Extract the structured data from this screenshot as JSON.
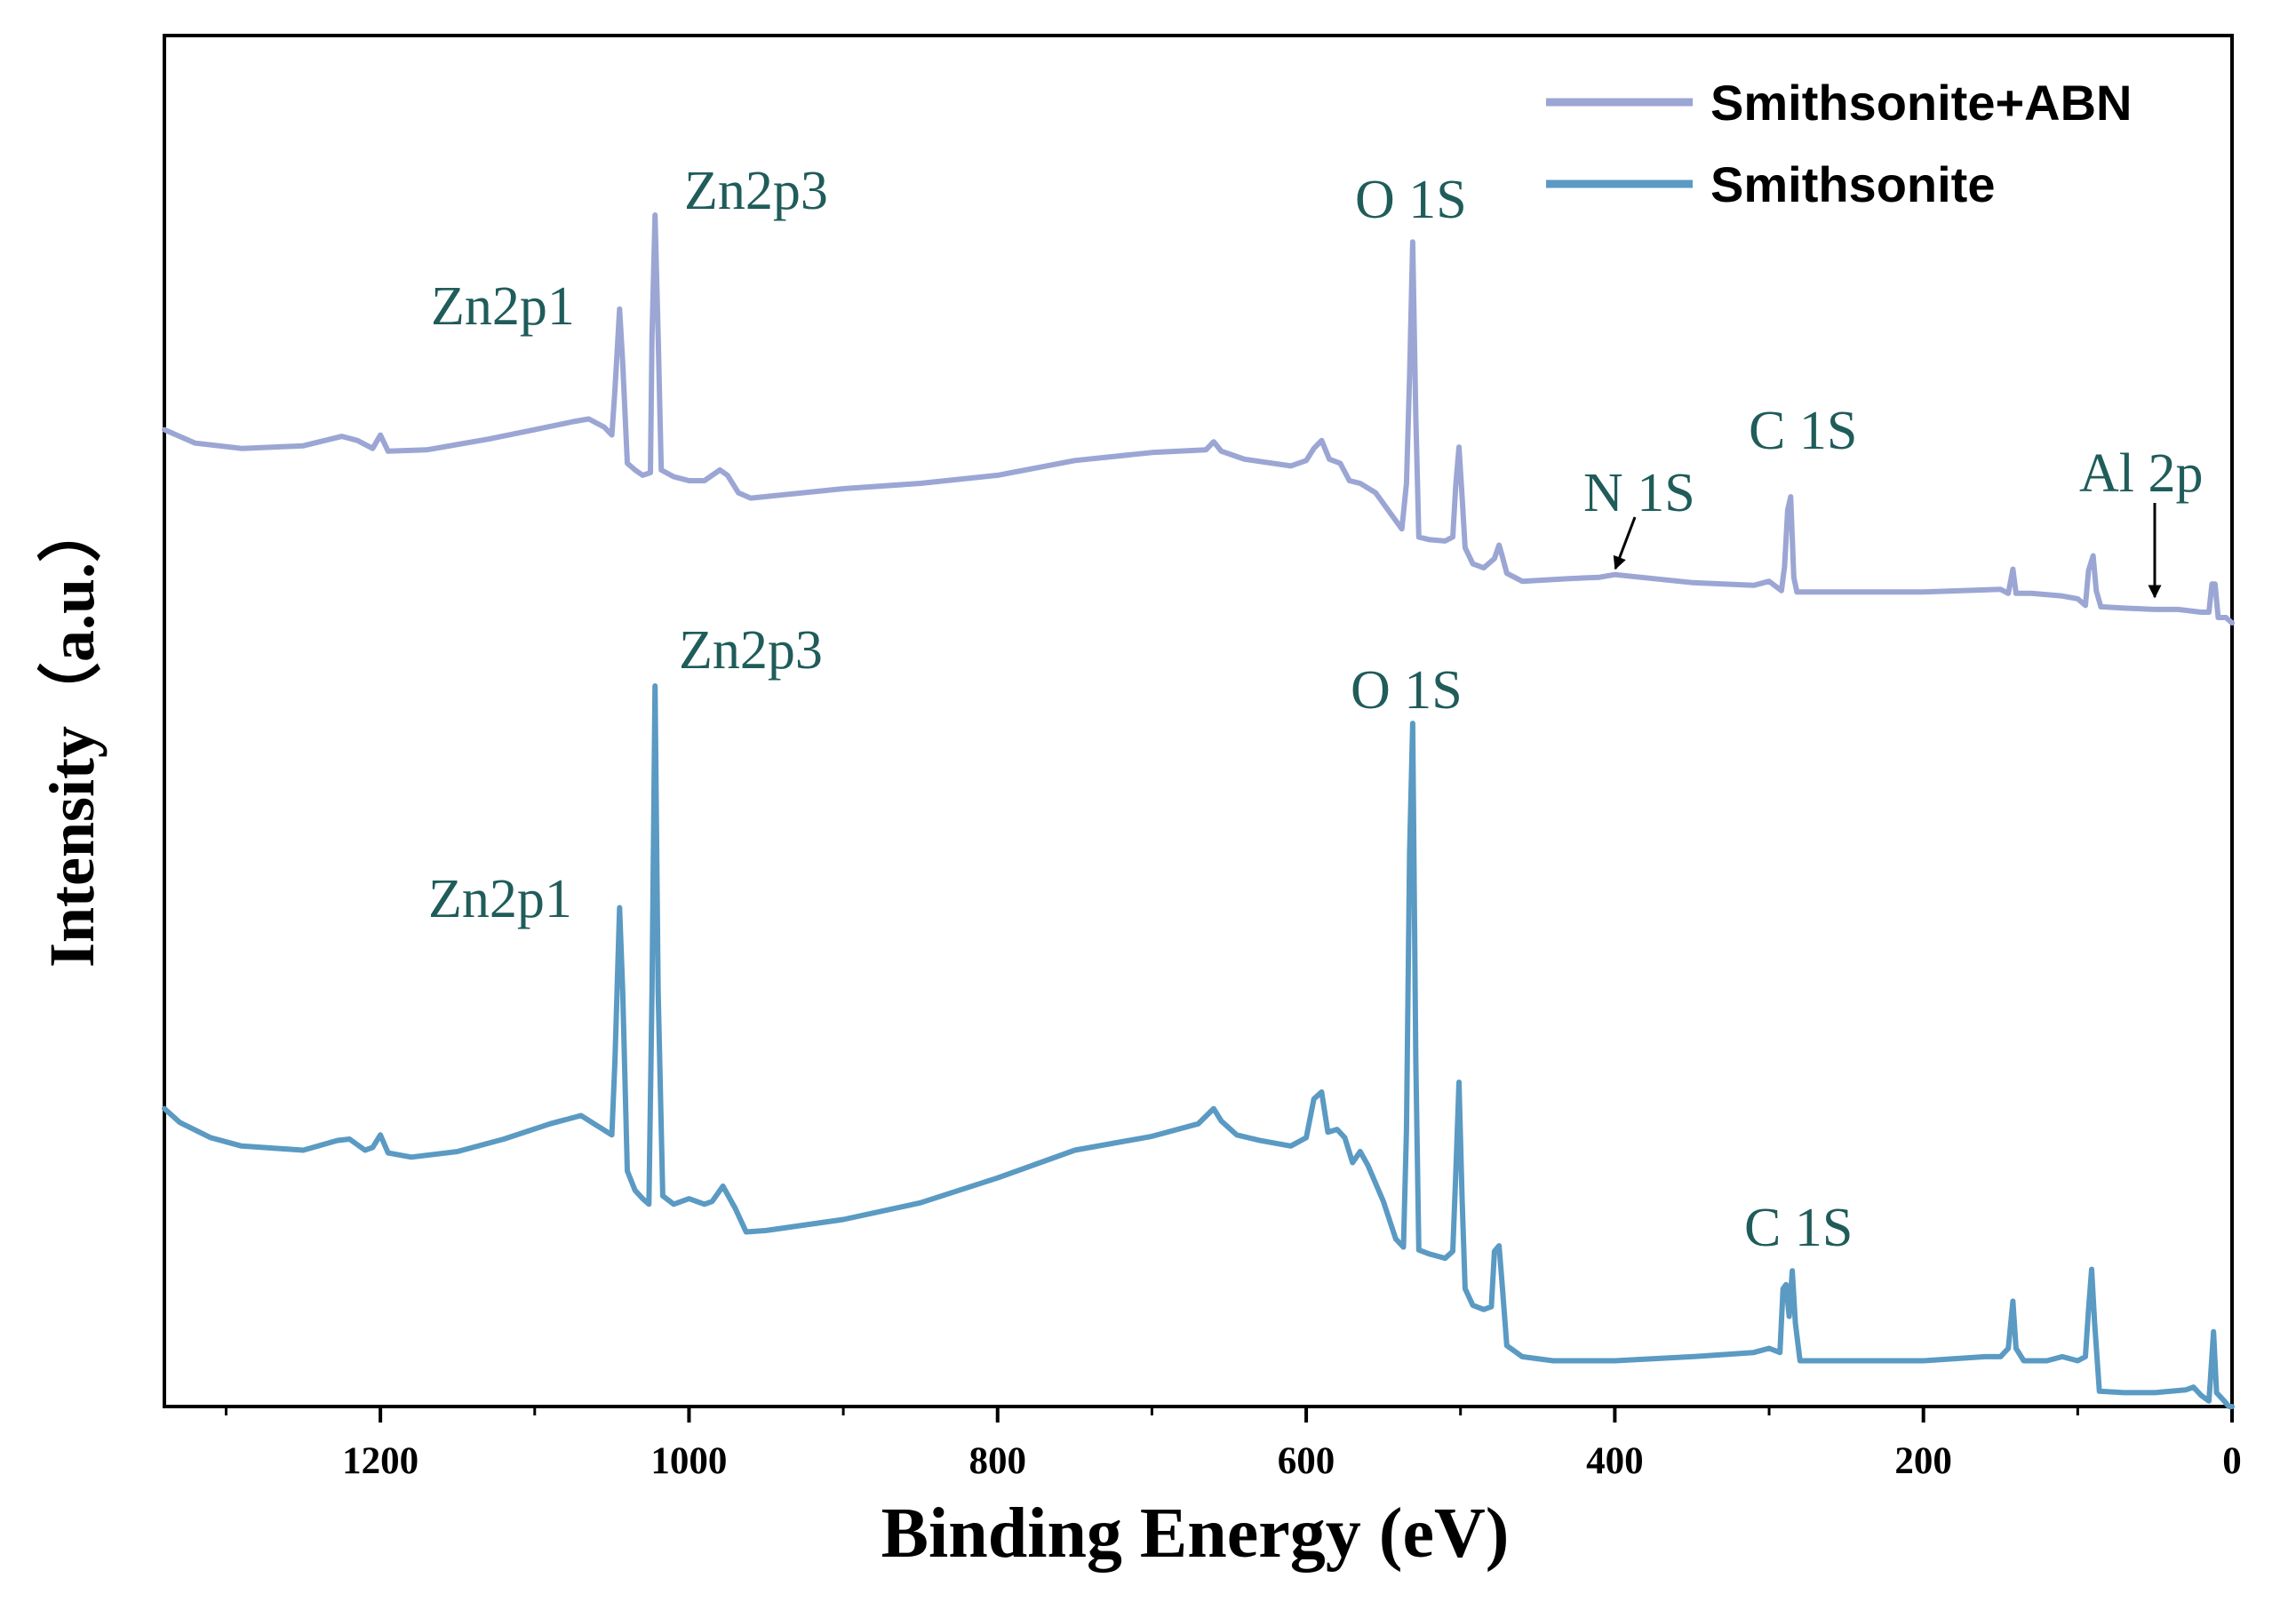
{
  "chart_data": {
    "type": "line",
    "title": "",
    "xlabel": "Binding Energy (eV)",
    "ylabel": "Intensity（a.u.）",
    "xlim": [
      1340,
      0
    ],
    "x_reversed": true,
    "ylim": [
      0,
      100
    ],
    "grid": false,
    "legend_position": "top-right",
    "x_ticks": [
      1200,
      1000,
      800,
      600,
      400,
      200,
      0
    ],
    "x_minor_ticks": [
      1300,
      1100,
      900,
      700,
      500,
      300,
      100
    ],
    "series": [
      {
        "name": "Smithsonite+ABN",
        "color": "#9ba6d4",
        "points": [
          [
            1340,
            71.0
          ],
          [
            1320,
            70.0
          ],
          [
            1290,
            69.6
          ],
          [
            1250,
            69.8
          ],
          [
            1225,
            70.5
          ],
          [
            1215,
            70.2
          ],
          [
            1205,
            69.6
          ],
          [
            1200,
            70.6
          ],
          [
            1195,
            69.4
          ],
          [
            1170,
            69.5
          ],
          [
            1130,
            70.3
          ],
          [
            1100,
            71.0
          ],
          [
            1075,
            71.6
          ],
          [
            1065,
            71.8
          ],
          [
            1055,
            71.2
          ],
          [
            1050,
            70.6
          ],
          [
            1048,
            74.0
          ],
          [
            1045,
            80.0
          ],
          [
            1043,
            76.0
          ],
          [
            1040,
            68.5
          ],
          [
            1035,
            68.0
          ],
          [
            1030,
            67.6
          ],
          [
            1025,
            67.8
          ],
          [
            1024,
            78.0
          ],
          [
            1022,
            87.0
          ],
          [
            1020,
            78.0
          ],
          [
            1018,
            68.0
          ],
          [
            1010,
            67.5
          ],
          [
            1000,
            67.2
          ],
          [
            990,
            67.2
          ],
          [
            980,
            68.0
          ],
          [
            975,
            67.6
          ],
          [
            968,
            66.3
          ],
          [
            960,
            65.9
          ],
          [
            900,
            66.6
          ],
          [
            850,
            67.0
          ],
          [
            800,
            67.6
          ],
          [
            750,
            68.7
          ],
          [
            700,
            69.3
          ],
          [
            665,
            69.5
          ],
          [
            660,
            70.1
          ],
          [
            655,
            69.4
          ],
          [
            640,
            68.8
          ],
          [
            610,
            68.3
          ],
          [
            600,
            68.7
          ],
          [
            595,
            69.6
          ],
          [
            590,
            70.2
          ],
          [
            585,
            68.8
          ],
          [
            578,
            68.5
          ],
          [
            572,
            67.2
          ],
          [
            565,
            67.0
          ],
          [
            555,
            66.3
          ],
          [
            545,
            64.7
          ],
          [
            538,
            63.6
          ],
          [
            535,
            67.0
          ],
          [
            533,
            75.0
          ],
          [
            531,
            85.0
          ],
          [
            529,
            72.0
          ],
          [
            527,
            63.0
          ],
          [
            520,
            62.8
          ],
          [
            510,
            62.7
          ],
          [
            505,
            63.0
          ],
          [
            503,
            67.0
          ],
          [
            501,
            69.7
          ],
          [
            499,
            66.0
          ],
          [
            497,
            62.2
          ],
          [
            492,
            61.0
          ],
          [
            485,
            60.7
          ],
          [
            478,
            61.4
          ],
          [
            475,
            62.4
          ],
          [
            473,
            61.6
          ],
          [
            470,
            60.3
          ],
          [
            460,
            59.7
          ],
          [
            430,
            59.9
          ],
          [
            410,
            60.0
          ],
          [
            400,
            60.2
          ],
          [
            350,
            59.6
          ],
          [
            310,
            59.4
          ],
          [
            300,
            59.7
          ],
          [
            292,
            59.0
          ],
          [
            290,
            60.8
          ],
          [
            288,
            65.0
          ],
          [
            286,
            66.0
          ],
          [
            284,
            60.0
          ],
          [
            282,
            58.9
          ],
          [
            270,
            58.9
          ],
          [
            200,
            58.9
          ],
          [
            150,
            59.1
          ],
          [
            145,
            58.8
          ],
          [
            142,
            60.6
          ],
          [
            140,
            58.8
          ],
          [
            130,
            58.8
          ],
          [
            110,
            58.6
          ],
          [
            100,
            58.4
          ],
          [
            95,
            57.9
          ],
          [
            93,
            60.5
          ],
          [
            90,
            61.6
          ],
          [
            88,
            59.0
          ],
          [
            85,
            57.8
          ],
          [
            70,
            57.7
          ],
          [
            50,
            57.6
          ],
          [
            35,
            57.6
          ],
          [
            20,
            57.4
          ],
          [
            15,
            57.4
          ],
          [
            13,
            59.5
          ],
          [
            11,
            59.5
          ],
          [
            9,
            57.0
          ],
          [
            4,
            57.0
          ],
          [
            0,
            56.6
          ]
        ]
      },
      {
        "name": "Smithsonite",
        "color": "#5a9ac3",
        "points": [
          [
            1340,
            21.5
          ],
          [
            1330,
            20.5
          ],
          [
            1310,
            19.4
          ],
          [
            1290,
            18.8
          ],
          [
            1250,
            18.5
          ],
          [
            1228,
            19.2
          ],
          [
            1220,
            19.3
          ],
          [
            1210,
            18.5
          ],
          [
            1205,
            18.7
          ],
          [
            1200,
            19.6
          ],
          [
            1195,
            18.3
          ],
          [
            1180,
            18.0
          ],
          [
            1150,
            18.4
          ],
          [
            1120,
            19.3
          ],
          [
            1090,
            20.4
          ],
          [
            1070,
            21.0
          ],
          [
            1060,
            20.3
          ],
          [
            1050,
            19.6
          ],
          [
            1048,
            25.0
          ],
          [
            1045,
            36.0
          ],
          [
            1043,
            30.0
          ],
          [
            1040,
            17.0
          ],
          [
            1035,
            15.6
          ],
          [
            1030,
            15.0
          ],
          [
            1026,
            14.6
          ],
          [
            1024,
            30.0
          ],
          [
            1022,
            52.0
          ],
          [
            1020,
            30.0
          ],
          [
            1017,
            15.2
          ],
          [
            1010,
            14.6
          ],
          [
            1000,
            15.0
          ],
          [
            990,
            14.6
          ],
          [
            985,
            14.8
          ],
          [
            978,
            15.9
          ],
          [
            970,
            14.3
          ],
          [
            963,
            12.6
          ],
          [
            950,
            12.7
          ],
          [
            900,
            13.5
          ],
          [
            850,
            14.7
          ],
          [
            800,
            16.5
          ],
          [
            750,
            18.5
          ],
          [
            700,
            19.5
          ],
          [
            670,
            20.4
          ],
          [
            660,
            21.5
          ],
          [
            655,
            20.6
          ],
          [
            645,
            19.6
          ],
          [
            630,
            19.2
          ],
          [
            610,
            18.8
          ],
          [
            600,
            19.4
          ],
          [
            595,
            22.2
          ],
          [
            590,
            22.7
          ],
          [
            586,
            19.8
          ],
          [
            580,
            20.0
          ],
          [
            575,
            19.4
          ],
          [
            570,
            17.6
          ],
          [
            565,
            18.4
          ],
          [
            560,
            17.4
          ],
          [
            550,
            14.8
          ],
          [
            542,
            12.1
          ],
          [
            537,
            11.5
          ],
          [
            535,
            20.0
          ],
          [
            533,
            40.0
          ],
          [
            531,
            49.3
          ],
          [
            529,
            25.0
          ],
          [
            527,
            11.3
          ],
          [
            520,
            11.0
          ],
          [
            510,
            10.7
          ],
          [
            505,
            11.2
          ],
          [
            503,
            17.0
          ],
          [
            501,
            23.4
          ],
          [
            499,
            15.0
          ],
          [
            497,
            8.5
          ],
          [
            492,
            7.3
          ],
          [
            485,
            7.0
          ],
          [
            480,
            7.2
          ],
          [
            478,
            11.2
          ],
          [
            475,
            11.6
          ],
          [
            473,
            8.8
          ],
          [
            470,
            4.4
          ],
          [
            460,
            3.6
          ],
          [
            440,
            3.3
          ],
          [
            400,
            3.3
          ],
          [
            350,
            3.6
          ],
          [
            310,
            3.9
          ],
          [
            300,
            4.2
          ],
          [
            293,
            3.9
          ],
          [
            291,
            8.5
          ],
          [
            289,
            8.8
          ],
          [
            287,
            6.5
          ],
          [
            285,
            9.8
          ],
          [
            283,
            6.0
          ],
          [
            280,
            3.3
          ],
          [
            250,
            3.3
          ],
          [
            200,
            3.3
          ],
          [
            160,
            3.6
          ],
          [
            150,
            3.6
          ],
          [
            145,
            4.2
          ],
          [
            142,
            7.6
          ],
          [
            140,
            4.2
          ],
          [
            135,
            3.3
          ],
          [
            120,
            3.3
          ],
          [
            110,
            3.6
          ],
          [
            100,
            3.3
          ],
          [
            95,
            3.6
          ],
          [
            93,
            7.0
          ],
          [
            91,
            9.9
          ],
          [
            89,
            6.0
          ],
          [
            86,
            1.1
          ],
          [
            70,
            1.0
          ],
          [
            50,
            1.0
          ],
          [
            30,
            1.2
          ],
          [
            25,
            1.4
          ],
          [
            20,
            0.8
          ],
          [
            15,
            0.4
          ],
          [
            14,
            2.0
          ],
          [
            12,
            5.4
          ],
          [
            10,
            1.0
          ],
          [
            5,
            0.4
          ],
          [
            2,
            0.0
          ],
          [
            0,
            0.0
          ]
        ]
      }
    ],
    "annotations": [
      {
        "text": "Zn2p1",
        "x": 1045,
        "series": "Smithsonite+ABN"
      },
      {
        "text": "Zn2p3",
        "x": 1022,
        "series": "Smithsonite+ABN"
      },
      {
        "text": "O 1S",
        "x": 531,
        "series": "Smithsonite+ABN"
      },
      {
        "text": "N 1S",
        "x": 400,
        "series": "Smithsonite+ABN",
        "arrow": true
      },
      {
        "text": "C 1S",
        "x": 285,
        "series": "Smithsonite+ABN"
      },
      {
        "text": "Al 2p",
        "x": 50,
        "series": "Smithsonite+ABN",
        "arrow": true
      },
      {
        "text": "Zn2p1",
        "x": 1045,
        "series": "Smithsonite"
      },
      {
        "text": "Zn2p3",
        "x": 1022,
        "series": "Smithsonite"
      },
      {
        "text": "O 1S",
        "x": 531,
        "series": "Smithsonite"
      },
      {
        "text": "C 1S",
        "x": 285,
        "series": "Smithsonite"
      }
    ]
  }
}
